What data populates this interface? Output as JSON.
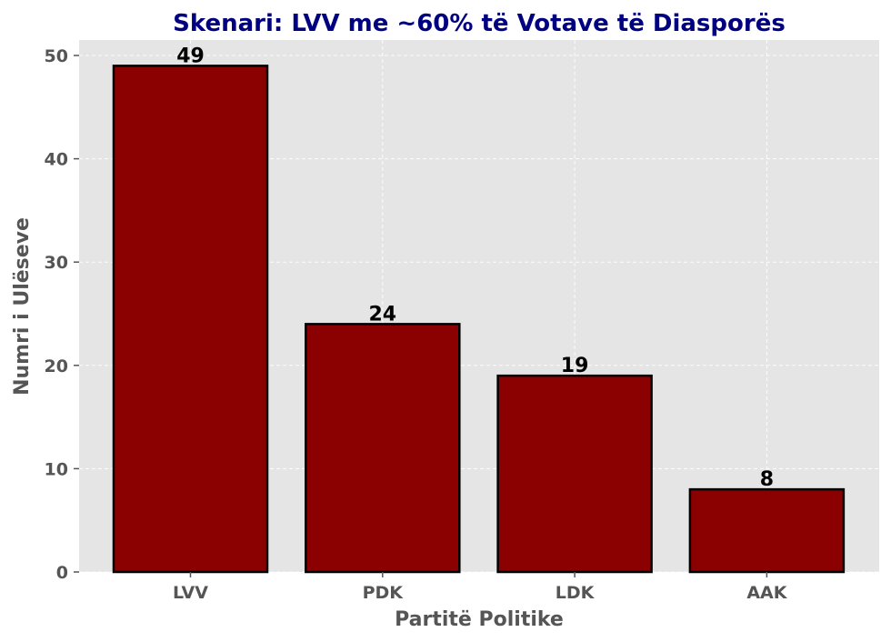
{
  "colors": {
    "bar": "#8b0000",
    "bar_edge": "#000000",
    "plot_background": "#e5e5e5",
    "grid": "#ffffff",
    "title": "#000080",
    "axis_text": "#555555"
  },
  "chart_data": {
    "type": "bar",
    "title": "Skenari: LVV me ~60% të Votave të Diasporës",
    "xlabel": "Partitë Politike",
    "ylabel": "Numri i Ulëseve",
    "categories": [
      "LVV",
      "PDK",
      "LDK",
      "AAK"
    ],
    "values": [
      49,
      24,
      19,
      8
    ],
    "data_labels": [
      "49",
      "24",
      "19",
      "8"
    ],
    "ylim": [
      0,
      51.5
    ],
    "yticks": [
      0,
      10,
      20,
      30,
      40,
      50
    ],
    "grid": true,
    "legend": "none"
  }
}
